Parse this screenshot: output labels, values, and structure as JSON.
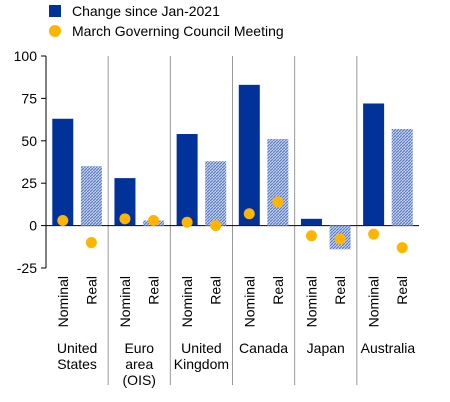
{
  "chart_data": {
    "type": "bar",
    "title": "",
    "xlabel": "",
    "ylabel": "",
    "ylim": [
      -25,
      100
    ],
    "yticks": [
      "100",
      "75",
      "50",
      "25",
      "0",
      "-25"
    ],
    "grid": false,
    "legend_placement": "top-left",
    "groups": [
      {
        "name": "United States",
        "lines": [
          "United",
          "States"
        ]
      },
      {
        "name": "Euro area (OIS)",
        "lines": [
          "Euro",
          "area",
          "(OIS)"
        ]
      },
      {
        "name": "United Kingdom",
        "lines": [
          "United",
          "Kingdom"
        ]
      },
      {
        "name": "Canada",
        "lines": [
          "Canada"
        ]
      },
      {
        "name": "Japan",
        "lines": [
          "Japan"
        ]
      },
      {
        "name": "Australia",
        "lines": [
          "Australia"
        ]
      }
    ],
    "categories": [
      "Nominal",
      "Real"
    ],
    "series": [
      {
        "name": "Change since Jan-2021",
        "kind": "bar",
        "color": "#003299",
        "values": [
          [
            63,
            35
          ],
          [
            28,
            3
          ],
          [
            54,
            38
          ],
          [
            83,
            51
          ],
          [
            4,
            -14
          ],
          [
            72,
            57
          ]
        ]
      },
      {
        "name": "March Governing Council Meeting",
        "kind": "dot",
        "color": "#FFB400",
        "values": [
          [
            3,
            -10
          ],
          [
            4,
            3
          ],
          [
            2,
            0
          ],
          [
            7,
            14
          ],
          [
            -6,
            -8
          ],
          [
            -5,
            -13
          ]
        ]
      }
    ],
    "colors": {
      "nominal_bar": "#003299",
      "real_bar_hatch": "#5C7CC7",
      "real_bar_base": "#C5D2EE",
      "dot": "#FFB400"
    }
  }
}
